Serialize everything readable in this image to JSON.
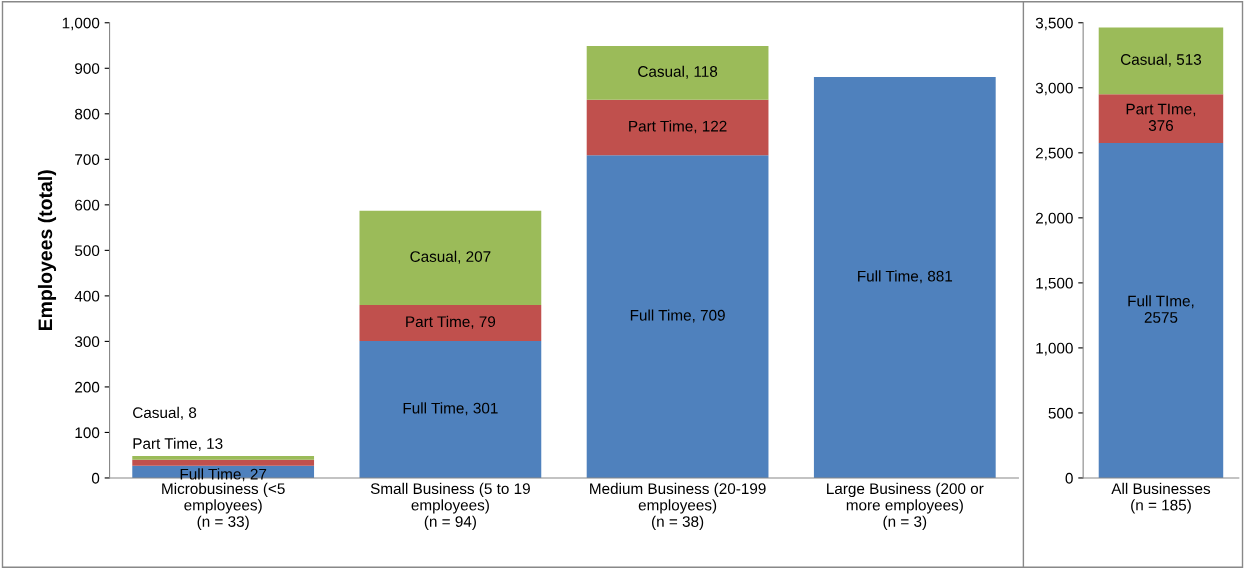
{
  "chart_data": [
    {
      "type": "bar",
      "stacked": true,
      "ylabel": "Employees (total)",
      "categories": [
        "Microbusiness (<5\nemployees)\n(n = 33)",
        "Small Business (5 to 19\nemployees)\n(n = 94)",
        "Medium Business (20-199\nemployees)\n(n = 38)",
        "Large Business (200 or\nmore employees)\n(n = 3)"
      ],
      "ylim": [
        0,
        1000
      ],
      "yticks": [
        0,
        100,
        200,
        300,
        400,
        500,
        600,
        700,
        800,
        900,
        {
          "value": 1000,
          "label": "1,000"
        }
      ],
      "grid": false,
      "legend": false,
      "series": [
        {
          "color": "#4f81bd",
          "values": [
            27,
            301,
            709,
            881
          ],
          "value_labels": [
            "Full Time, 27",
            "Full Time, 301",
            "Full Time, 709",
            "Full Time, 881"
          ]
        },
        {
          "color": "#c0504d",
          "values": [
            13,
            79,
            122,
            null
          ],
          "value_labels": [
            "Part Time, 13",
            "Part Time, 79",
            "Part Time, 122",
            null
          ]
        },
        {
          "color": "#9bbb59",
          "values": [
            8,
            207,
            118,
            null
          ],
          "value_labels": [
            "Casual, 8",
            "Casual, 207",
            "Casual, 118",
            null
          ]
        }
      ]
    },
    {
      "type": "bar",
      "stacked": true,
      "categories": [
        "All Businesses\n(n = 185)"
      ],
      "ylim": [
        0,
        3500
      ],
      "yticks": [
        0,
        500,
        {
          "value": 1000,
          "label": "1,000"
        },
        {
          "value": 1500,
          "label": "1,500"
        },
        {
          "value": 2000,
          "label": "2,000"
        },
        {
          "value": 2500,
          "label": "2,500"
        },
        {
          "value": 3000,
          "label": "3,000"
        },
        {
          "value": 3500,
          "label": "3,500"
        }
      ],
      "grid": false,
      "legend": false,
      "series": [
        {
          "color": "#4f81bd",
          "values": [
            2575
          ],
          "value_labels": [
            "Full TIme,\n2575"
          ]
        },
        {
          "color": "#c0504d",
          "values": [
            376
          ],
          "value_labels": [
            "Part TIme,\n376"
          ]
        },
        {
          "color": "#9bbb59",
          "values": [
            513
          ],
          "value_labels": [
            "Casual, 513"
          ]
        }
      ]
    }
  ]
}
